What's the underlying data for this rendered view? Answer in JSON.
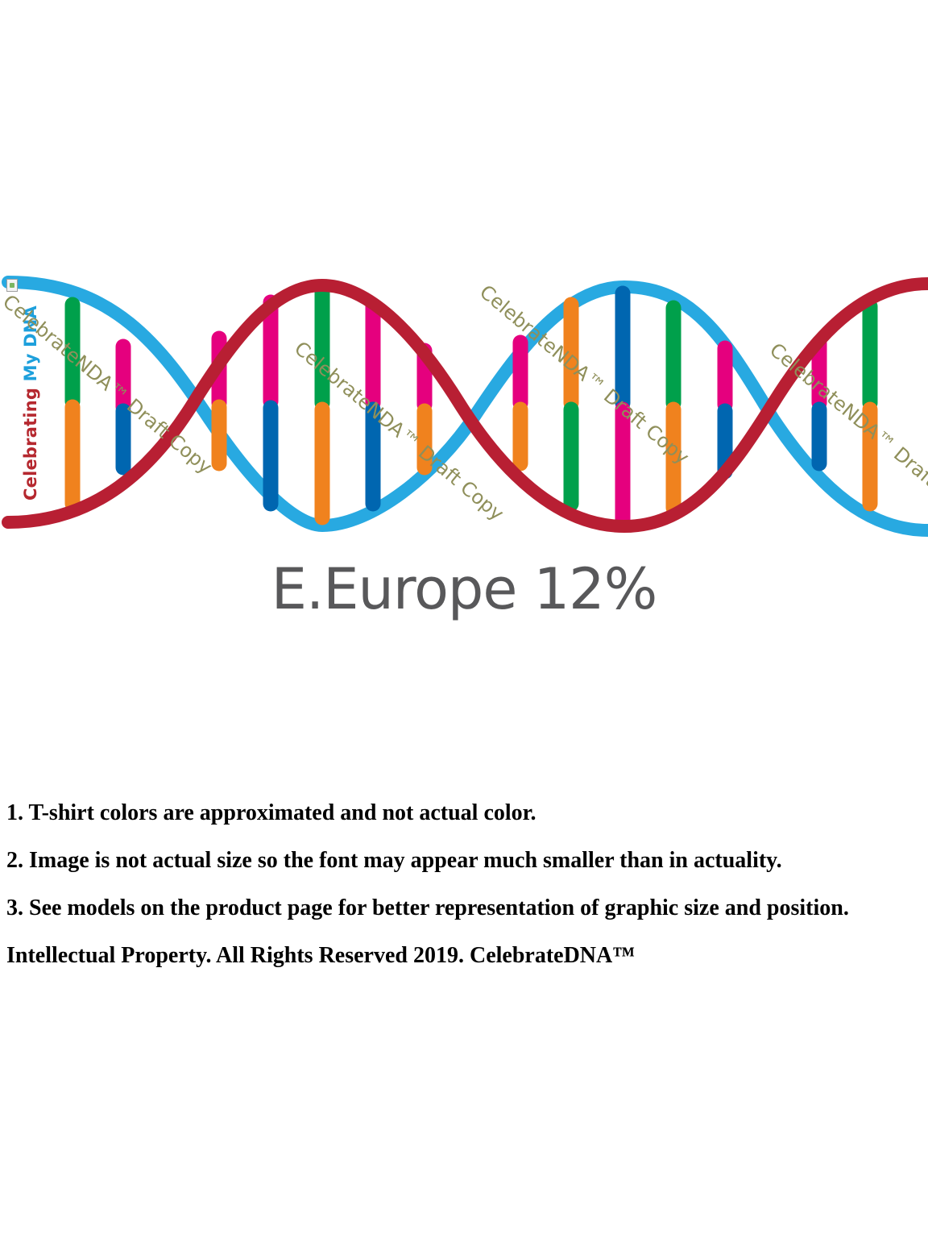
{
  "design": {
    "brand_word_1": "Celebrating",
    "brand_word_2": "My DNA",
    "watermark": "CelebrateNDA™ Draft Copy",
    "caption": "E.Europe 12%",
    "colors": {
      "strand_red": "#b81f33",
      "strand_blue": "#28a9e1",
      "base_green": "#00a04b",
      "base_orange": "#f0821e",
      "base_pink": "#e5007e",
      "base_dark_blue": "#0066b0",
      "caption_gray": "#58585a",
      "watermark_olive": "#8f8f5a"
    },
    "broken_image_icon": "broken-image-icon"
  },
  "notes": {
    "line1": "1. T-shirt colors are approximated and not actual color.",
    "line2": "2. Image is not actual size so the font may appear much smaller than in actuality.",
    "line3": "3. See models on the product page for better representation of graphic size and position.",
    "copyright": "Intellectual Property. All Rights Reserved 2019. CelebrateDNA™"
  }
}
